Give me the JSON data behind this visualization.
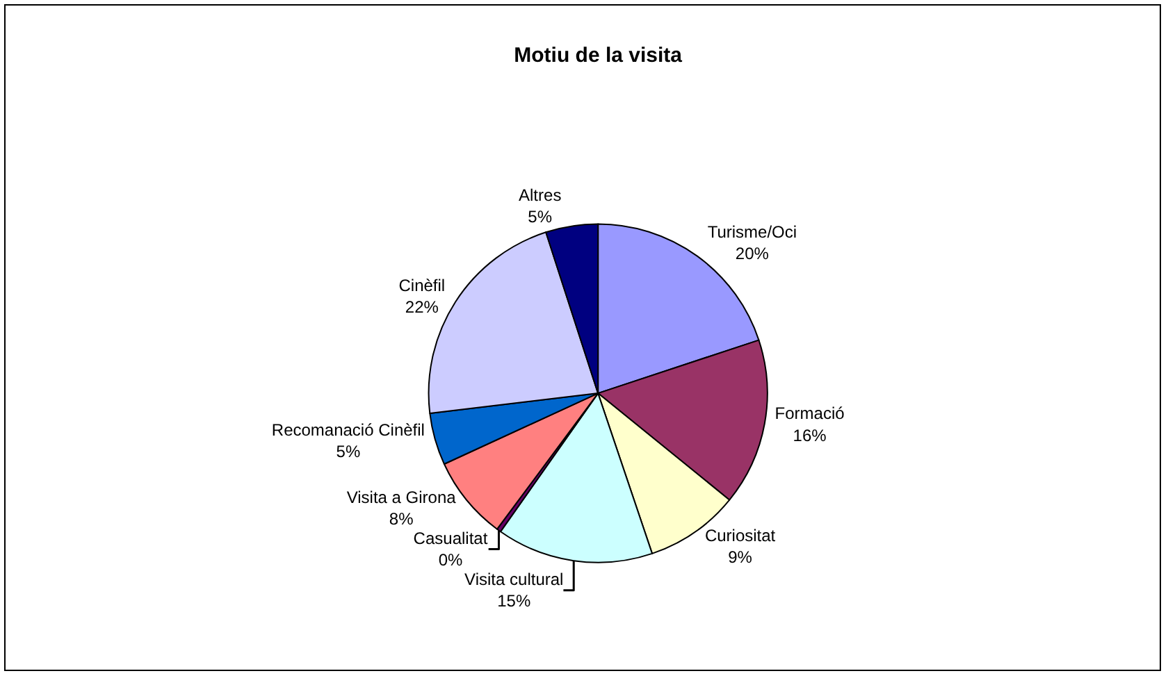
{
  "chart_data": {
    "type": "pie",
    "title": "Motiu de la visita",
    "categories": [
      "Turisme/Oci",
      "Formació",
      "Curiositat",
      "Visita cultural",
      "Casualitat",
      "Visita a Girona",
      "Recomanació Cinèfil",
      "Cinèfil",
      "Altres"
    ],
    "values": [
      20,
      16,
      9,
      15,
      0.4,
      8,
      5,
      22,
      5
    ],
    "value_labels": [
      "20%",
      "16%",
      "9%",
      "15%",
      "0%",
      "8%",
      "5%",
      "22%",
      "5%"
    ],
    "colors": [
      "#9999ff",
      "#993366",
      "#ffffcc",
      "#ccffff",
      "#660066",
      "#ff8080",
      "#0066cc",
      "#ccccff",
      "#000080"
    ],
    "legend": false
  }
}
